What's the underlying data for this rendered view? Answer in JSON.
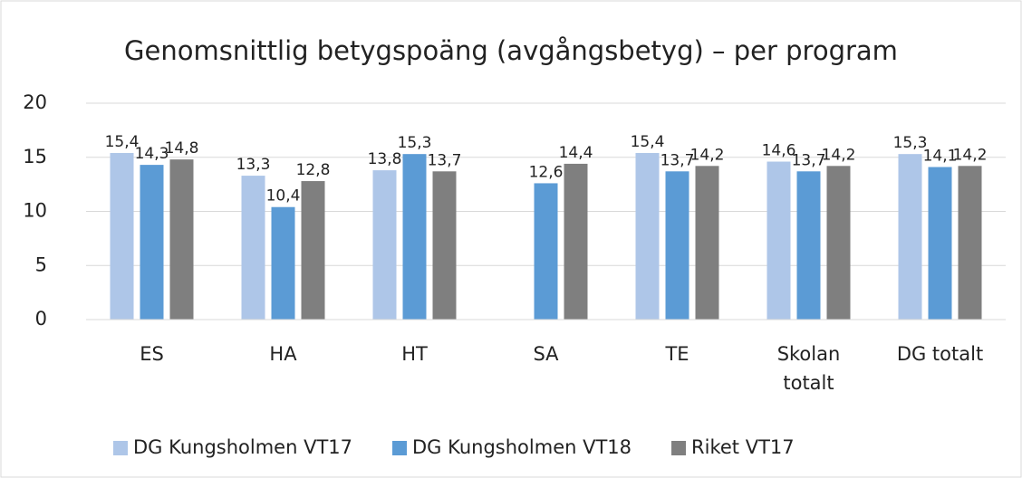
{
  "chart_data": {
    "type": "bar",
    "title": "Genomsnittlig betygspoäng (avgångsbetyg) – per program",
    "categories": [
      "ES",
      "HA",
      "HT",
      "SA",
      "TE",
      "Skolan totalt",
      "DG totalt"
    ],
    "series": [
      {
        "name": "DG Kungsholmen VT17",
        "color": "#aec6e8",
        "values": [
          15.4,
          13.3,
          13.8,
          null,
          15.4,
          14.6,
          15.3
        ],
        "value_labels": [
          "15,4",
          "13,3",
          "13,8",
          null,
          "15,4",
          "14,6",
          "15,3"
        ]
      },
      {
        "name": "DG Kungsholmen VT18",
        "color": "#5b9bd5",
        "values": [
          14.3,
          10.4,
          15.3,
          12.6,
          13.7,
          13.7,
          14.1
        ],
        "value_labels": [
          "14,3",
          "10,4",
          "15,3",
          "12,6",
          "13,7",
          "13,7",
          "14,1"
        ]
      },
      {
        "name": "Riket VT17",
        "color": "#7f7f7f",
        "values": [
          14.8,
          12.8,
          13.7,
          14.4,
          14.2,
          14.2,
          14.2
        ],
        "value_labels": [
          "14,8",
          "12,8",
          "13,7",
          "14,4",
          "14,2",
          "14,2",
          "14,2"
        ]
      }
    ],
    "ylim": [
      0,
      20
    ],
    "yticks": [
      0,
      5,
      10,
      15,
      20
    ],
    "grid": true,
    "legend": "bottom"
  }
}
